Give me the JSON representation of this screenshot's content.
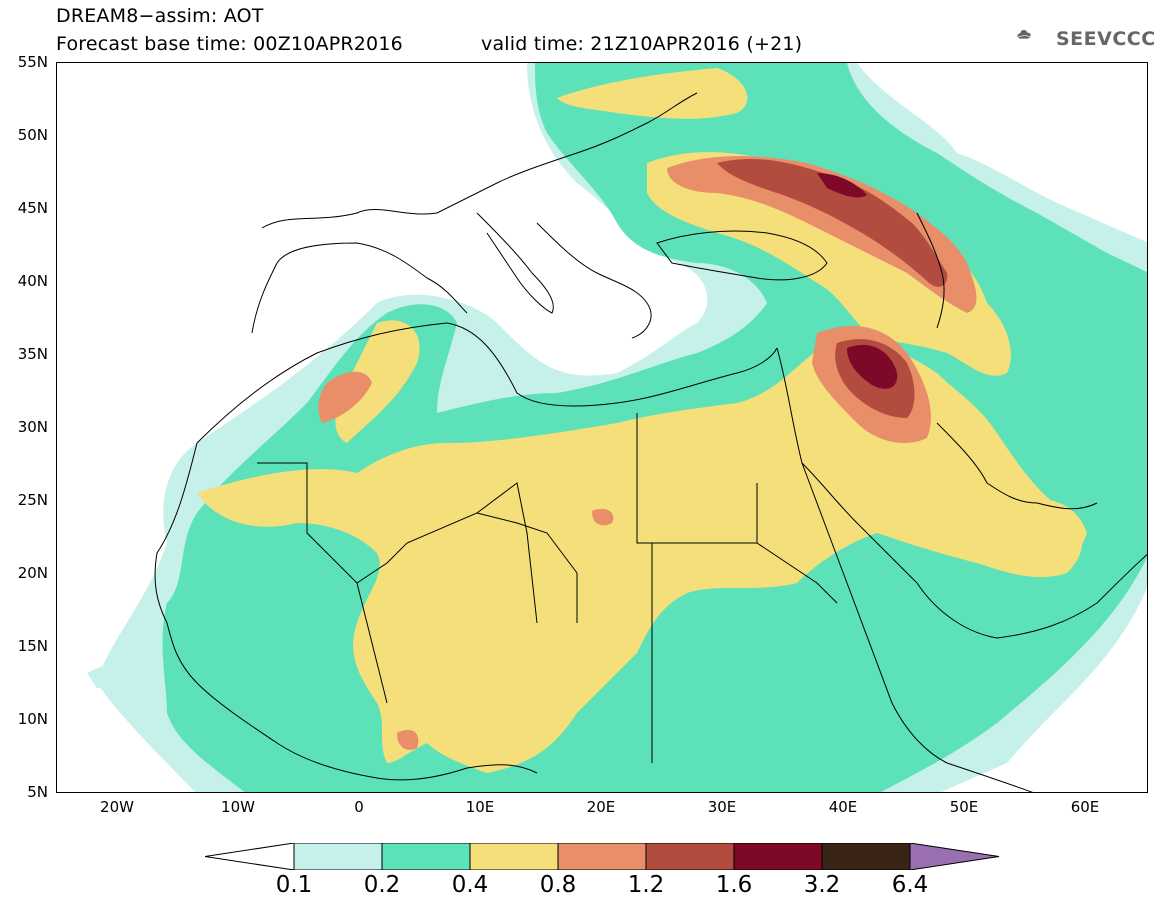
{
  "header": {
    "line1": "DREAM8−assim: AOT",
    "line2_base": "Forecast base time: 00Z10APR2016",
    "line2_valid": "valid time: 21Z10APR2016 (+21)"
  },
  "logo": {
    "text": "SEEVCCC",
    "icon": "cloud-icon"
  },
  "map": {
    "lat_labels": [
      "55N",
      "50N",
      "45N",
      "40N",
      "35N",
      "30N",
      "25N",
      "20N",
      "15N",
      "10N",
      "5N"
    ],
    "lon_labels": [
      "20W",
      "10W",
      "0",
      "10E",
      "20E",
      "30E",
      "40E",
      "50E",
      "60E"
    ],
    "extent": {
      "lon_min": -25,
      "lon_max": 65,
      "lat_min": 5,
      "lat_max": 55
    }
  },
  "legend": {
    "labels": [
      "0.1",
      "0.2",
      "0.4",
      "0.8",
      "1.2",
      "1.6",
      "3.2",
      "6.4"
    ],
    "colors": [
      "#ffffff",
      "#c6f0ea",
      "#5ce1b9",
      "#f4df7a",
      "#e88e68",
      "#b24c3f",
      "#7d0828",
      "#3a2416",
      "#9a6fb0"
    ]
  }
}
